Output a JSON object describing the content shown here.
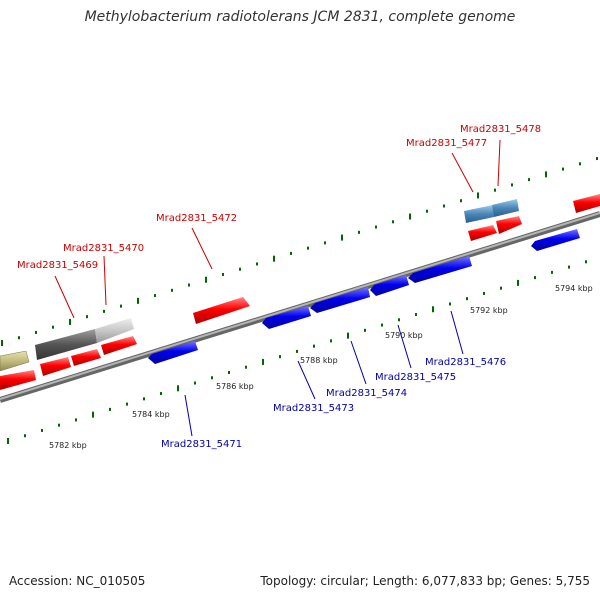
{
  "title": "Methylobacterium radiotolerans JCM 2831, complete genome",
  "footer": {
    "accession": "Accession: NC_010505",
    "summary": "Topology: circular; Length: 6,077,833 bp; Genes: 5,755"
  },
  "colors": {
    "forward_gene": "#ff0000",
    "reverse_gene": "#0000ee",
    "forward_label": "#cc0000",
    "reverse_label": "#0000aa",
    "tick": "#006600",
    "backbone": "#888888"
  },
  "kbp_ticks": [
    {
      "kbp": 5782,
      "label": "5782 kbp"
    },
    {
      "kbp": 5784,
      "label": "5784 kbp"
    },
    {
      "kbp": 5786,
      "label": "5786 kbp"
    },
    {
      "kbp": 5788,
      "label": "5788 kbp"
    },
    {
      "kbp": 5790,
      "label": "5790 kbp"
    },
    {
      "kbp": 5792,
      "label": "5792 kbp"
    },
    {
      "kbp": 5794,
      "label": "5794 kbp"
    }
  ],
  "gene_labels": {
    "forward": [
      "Mrad2831_5469",
      "Mrad2831_5470",
      "Mrad2831_5472",
      "Mrad2831_5477",
      "Mrad2831_5478"
    ],
    "reverse": [
      "Mrad2831_5471",
      "Mrad2831_5473",
      "Mrad2831_5474",
      "Mrad2831_5475",
      "Mrad2831_5476"
    ]
  }
}
